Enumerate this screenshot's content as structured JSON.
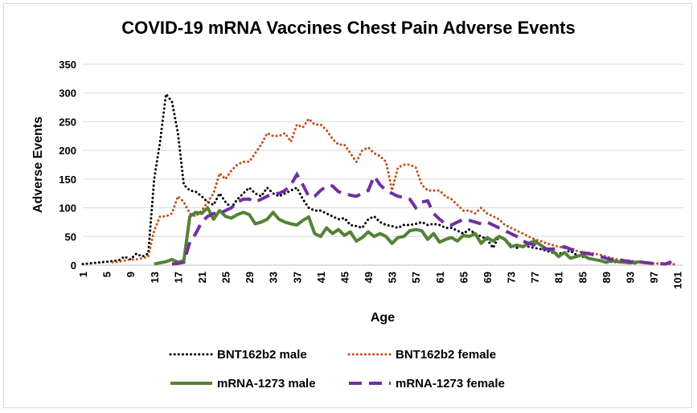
{
  "chart_data": {
    "type": "line",
    "title": "COVID-19 mRNA Vaccines Chest Pain Adverse Events",
    "xlabel": "Age",
    "ylabel": "Adverse Events",
    "ylim": [
      0,
      350
    ],
    "yticks": [
      "0",
      "50",
      "100",
      "150",
      "200",
      "250",
      "300",
      "350"
    ],
    "xlim": [
      1,
      102
    ],
    "xtick_values": [
      1,
      5,
      9,
      13,
      17,
      21,
      25,
      29,
      33,
      37,
      41,
      45,
      49,
      53,
      57,
      61,
      65,
      69,
      73,
      77,
      81,
      85,
      89,
      93,
      97,
      101
    ],
    "xticks": [
      "1",
      "5",
      "9",
      "13",
      "17",
      "21",
      "25",
      "29",
      "33",
      "37",
      "41",
      "45",
      "49",
      "53",
      "57",
      "61",
      "65",
      "69",
      "73",
      "77",
      "81",
      "85",
      "89",
      "93",
      "97",
      "101"
    ],
    "grid": "horizontal",
    "legend": "bottom",
    "series": [
      {
        "name": "BNT162b2 male",
        "color": "#000000",
        "style": "dotted",
        "x": [
          1,
          7,
          8,
          9,
          10,
          11,
          12,
          13,
          14,
          15,
          16,
          17,
          18,
          19,
          20,
          21,
          22,
          23,
          24,
          25,
          26,
          27,
          28,
          29,
          30,
          31,
          32,
          33,
          34,
          35,
          36,
          37,
          38,
          39,
          40,
          41,
          42,
          43,
          44,
          45,
          46,
          47,
          48,
          49,
          50,
          51,
          52,
          53,
          54,
          55,
          56,
          57,
          58,
          59,
          60,
          61,
          62,
          63,
          64,
          65,
          66,
          67,
          68,
          69,
          70,
          71,
          72,
          73,
          74,
          75,
          76,
          77,
          78,
          79,
          80,
          81,
          82,
          83,
          84,
          85,
          86,
          87,
          88,
          89,
          90,
          91,
          92,
          93,
          94
        ],
        "values": [
          2,
          8,
          15,
          10,
          20,
          15,
          20,
          150,
          215,
          298,
          285,
          230,
          140,
          130,
          128,
          120,
          110,
          105,
          125,
          110,
          100,
          115,
          125,
          135,
          125,
          120,
          135,
          125,
          120,
          125,
          130,
          135,
          115,
          100,
          95,
          95,
          90,
          85,
          80,
          82,
          70,
          68,
          65,
          80,
          85,
          75,
          70,
          68,
          65,
          70,
          70,
          72,
          75,
          70,
          72,
          70,
          65,
          65,
          60,
          55,
          62,
          55,
          50,
          45,
          30,
          50,
          45,
          35,
          30,
          35,
          32,
          30,
          28,
          25,
          22,
          20,
          22,
          25,
          18,
          15,
          12,
          10,
          8,
          5,
          6,
          5,
          8,
          5,
          3
        ]
      },
      {
        "name": "BNT162b2 female",
        "color": "#c0501f",
        "style": "dotted",
        "x": [
          6,
          7,
          8,
          9,
          10,
          11,
          12,
          13,
          14,
          15,
          16,
          17,
          18,
          19,
          20,
          21,
          22,
          23,
          24,
          25,
          26,
          27,
          28,
          29,
          30,
          31,
          32,
          33,
          34,
          35,
          36,
          37,
          38,
          39,
          40,
          41,
          42,
          43,
          44,
          45,
          46,
          47,
          48,
          49,
          50,
          51,
          52,
          53,
          54,
          55,
          56,
          57,
          58,
          59,
          60,
          61,
          62,
          63,
          64,
          65,
          66,
          67,
          68,
          69,
          70,
          71,
          72,
          73,
          74,
          75,
          76,
          77,
          78,
          79,
          80,
          81,
          82,
          83,
          84,
          85,
          86,
          87,
          88,
          89,
          90,
          91,
          92,
          93,
          94,
          95,
          96,
          97,
          98,
          99,
          100,
          101
        ],
        "values": [
          5,
          6,
          8,
          10,
          10,
          12,
          15,
          60,
          85,
          85,
          90,
          120,
          110,
          90,
          85,
          95,
          110,
          125,
          160,
          150,
          165,
          175,
          180,
          180,
          195,
          210,
          230,
          225,
          225,
          230,
          215,
          245,
          240,
          255,
          245,
          245,
          235,
          220,
          210,
          210,
          195,
          180,
          200,
          205,
          195,
          190,
          180,
          130,
          170,
          175,
          175,
          170,
          140,
          130,
          130,
          130,
          120,
          115,
          105,
          95,
          95,
          90,
          100,
          90,
          85,
          80,
          70,
          65,
          60,
          55,
          50,
          45,
          42,
          38,
          35,
          32,
          30,
          28,
          25,
          22,
          22,
          20,
          18,
          15,
          12,
          10,
          8,
          8,
          6,
          5,
          4,
          3,
          3,
          2,
          2,
          1
        ]
      },
      {
        "name": "mRNA-1273 male",
        "color": "#548235",
        "style": "solid",
        "x": [
          13,
          14,
          15,
          16,
          17,
          18,
          19,
          20,
          21,
          22,
          23,
          24,
          25,
          26,
          27,
          28,
          29,
          30,
          31,
          32,
          33,
          34,
          35,
          36,
          37,
          38,
          39,
          40,
          41,
          42,
          43,
          44,
          45,
          46,
          47,
          48,
          49,
          50,
          51,
          52,
          53,
          54,
          55,
          56,
          57,
          58,
          59,
          60,
          61,
          62,
          63,
          64,
          65,
          66,
          67,
          68,
          69,
          70,
          71,
          72,
          73,
          74,
          75,
          76,
          77,
          78,
          79,
          80,
          81,
          82,
          83,
          84,
          85,
          86,
          87,
          88,
          89,
          90,
          91,
          92,
          93,
          94,
          95
        ],
        "values": [
          2,
          4,
          6,
          10,
          5,
          8,
          85,
          92,
          90,
          100,
          80,
          95,
          85,
          82,
          88,
          92,
          88,
          72,
          75,
          80,
          92,
          80,
          75,
          72,
          70,
          78,
          84,
          55,
          50,
          65,
          55,
          62,
          52,
          58,
          42,
          48,
          58,
          50,
          55,
          50,
          38,
          48,
          50,
          60,
          62,
          60,
          45,
          55,
          40,
          45,
          48,
          42,
          52,
          50,
          55,
          38,
          48,
          42,
          50,
          45,
          32,
          35,
          32,
          38,
          42,
          35,
          28,
          25,
          15,
          22,
          12,
          15,
          18,
          12,
          10,
          8,
          5,
          8,
          6,
          5,
          4,
          5,
          6
        ]
      },
      {
        "name": "mRNA-1273 female",
        "color": "#7030a0",
        "style": "dashed",
        "x": [
          16,
          17,
          18,
          19,
          20,
          21,
          22,
          23,
          24,
          25,
          26,
          27,
          28,
          29,
          30,
          31,
          32,
          33,
          34,
          35,
          36,
          37,
          38,
          39,
          40,
          41,
          42,
          43,
          44,
          45,
          46,
          47,
          48,
          49,
          50,
          51,
          52,
          53,
          54,
          55,
          56,
          57,
          58,
          59,
          60,
          61,
          62,
          63,
          64,
          65,
          66,
          67,
          68,
          69,
          70,
          71,
          72,
          73,
          74,
          75,
          76,
          77,
          78,
          79,
          80,
          81,
          82,
          83,
          84,
          85,
          86,
          87,
          88,
          89,
          90,
          91,
          92,
          93,
          94,
          95,
          96,
          97,
          98,
          99,
          100
        ],
        "values": [
          2,
          3,
          5,
          40,
          55,
          75,
          85,
          90,
          90,
          95,
          100,
          110,
          115,
          115,
          110,
          115,
          120,
          125,
          125,
          130,
          140,
          158,
          140,
          120,
          120,
          130,
          138,
          138,
          128,
          125,
          122,
          120,
          125,
          130,
          155,
          140,
          130,
          125,
          120,
          118,
          115,
          100,
          110,
          112,
          90,
          80,
          72,
          70,
          75,
          80,
          78,
          75,
          72,
          75,
          70,
          65,
          60,
          55,
          50,
          42,
          38,
          35,
          30,
          28,
          28,
          30,
          32,
          28,
          25,
          22,
          20,
          18,
          15,
          12,
          10,
          10,
          8,
          6,
          5,
          5,
          4,
          3,
          3,
          2,
          6
        ]
      }
    ]
  }
}
